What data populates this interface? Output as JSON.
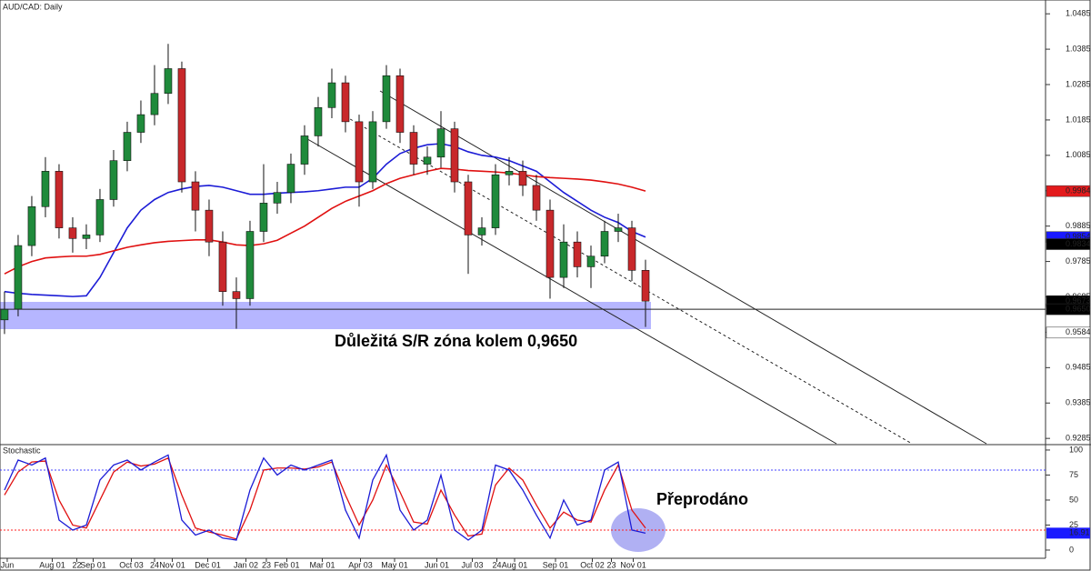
{
  "chart_data": [
    {
      "type": "candlestick",
      "title": "AUD/CAD: Daily",
      "open": [
        0.962,
        0.965,
        0.983,
        0.994,
        1.004,
        0.988,
        0.985,
        0.986,
        0.996,
        1.007,
        1.015,
        1.02,
        1.026,
        1.033,
        1.001,
        0.993,
        0.984,
        0.97,
        0.968,
        0.987,
        0.995,
        0.998,
        1.006,
        1.014,
        1.022,
        1.029,
        1.018,
        1.001,
        1.018,
        1.031,
        1.015,
        1.006,
        1.008,
        1.016,
        1.001,
        0.986,
        0.988,
        1.003,
        1.004,
        1.0,
        0.993,
        0.974,
        0.984,
        0.977,
        0.98,
        0.987,
        0.988,
        0.976
      ],
      "high": [
        0.97,
        0.986,
        0.997,
        1.008,
        1.006,
        0.991,
        0.989,
        0.999,
        1.01,
        1.018,
        1.024,
        1.034,
        1.04,
        1.035,
        1.004,
        0.996,
        0.987,
        0.974,
        0.99,
        1.006,
        1.001,
        1.009,
        1.017,
        1.025,
        1.033,
        1.031,
        1.02,
        1.021,
        1.034,
        1.033,
        1.017,
        1.011,
        1.021,
        1.018,
        1.003,
        0.991,
        1.006,
        1.008,
        1.007,
        1.003,
        0.996,
        0.989,
        0.987,
        0.983,
        0.99,
        0.992,
        0.99,
        0.979
      ],
      "low": [
        0.958,
        0.963,
        0.98,
        0.991,
        0.985,
        0.981,
        0.982,
        0.984,
        0.994,
        1.004,
        1.012,
        1.017,
        1.023,
        0.998,
        0.987,
        0.98,
        0.966,
        0.9595,
        0.966,
        0.984,
        0.992,
        0.995,
        1.003,
        1.011,
        1.019,
        1.015,
        0.994,
        0.999,
        1.016,
        1.012,
        1.003,
        1.003,
        1.005,
        0.998,
        0.975,
        0.983,
        0.986,
        1.0,
        0.997,
        0.99,
        0.968,
        0.971,
        0.974,
        0.971,
        0.978,
        0.984,
        0.973,
        0.96
      ],
      "close": [
        0.965,
        0.983,
        0.994,
        1.004,
        0.988,
        0.985,
        0.986,
        0.996,
        1.007,
        1.015,
        1.02,
        1.026,
        1.033,
        1.001,
        0.993,
        0.984,
        0.97,
        0.968,
        0.987,
        0.995,
        0.998,
        1.006,
        1.014,
        1.022,
        1.029,
        1.018,
        1.001,
        1.018,
        1.031,
        1.015,
        1.006,
        1.008,
        1.016,
        1.001,
        0.986,
        0.988,
        1.003,
        1.004,
        1.0,
        0.993,
        0.974,
        0.984,
        0.977,
        0.98,
        0.987,
        0.988,
        0.976,
        0.9673
      ],
      "up_color": "#1f8a3b",
      "down_color": "#c8282b",
      "moving_averages": [
        {
          "color": "#1c1cd6",
          "values": [
            0.97,
            0.9695,
            0.9692,
            0.969,
            0.9688,
            0.9686,
            0.9688,
            0.974,
            0.981,
            0.988,
            0.993,
            0.996,
            0.998,
            0.999,
            0.9997,
            1.0,
            0.9995,
            0.9985,
            0.9975,
            0.9975,
            0.9978,
            0.998,
            0.9982,
            0.9985,
            0.999,
            0.9995,
            0.9995,
            1.002,
            1.006,
            1.009,
            1.0105,
            1.0115,
            1.0118,
            1.011,
            1.0095,
            1.0085,
            1.008,
            1.007,
            1.0055,
            1.004,
            1.001,
            0.998,
            0.9955,
            0.993,
            0.991,
            0.9895,
            0.987,
            0.9854
          ]
        },
        {
          "color": "#e01010",
          "values": [
            0.975,
            0.977,
            0.9785,
            0.9795,
            0.9798,
            0.98,
            0.98,
            0.9805,
            0.9815,
            0.9825,
            0.9832,
            0.9838,
            0.9842,
            0.9844,
            0.9846,
            0.9846,
            0.984,
            0.9832,
            0.983,
            0.9835,
            0.9845,
            0.9865,
            0.9885,
            0.991,
            0.9935,
            0.9955,
            0.997,
            0.9985,
            1.0005,
            1.002,
            1.003,
            1.004,
            1.0048,
            1.0046,
            1.0042,
            1.004,
            1.0038,
            1.0035,
            1.003,
            1.0025,
            1.0022,
            1.002,
            1.0018,
            1.0015,
            1.001,
            1.0004,
            0.9995,
            0.9984
          ]
        }
      ],
      "xlim": [
        -0.33,
        76.33
      ],
      "ylim": [
        0.927,
        1.0524
      ],
      "yticks": [
        1.0485,
        1.0385,
        1.0285,
        1.0185,
        1.0085,
        0.9985,
        0.9885,
        0.9785,
        0.9685,
        0.9585,
        0.9485,
        0.9385,
        0.9285
      ],
      "xticks": [
        {
          "value": 0.2,
          "label": "Jun"
        },
        {
          "value": 3.5,
          "label": "Aug 01"
        },
        {
          "value": 5.3,
          "label": "22"
        },
        {
          "value": 6.5,
          "label": "Sep 01"
        },
        {
          "value": 9.3,
          "label": "Oct 03"
        },
        {
          "value": 11,
          "label": "24"
        },
        {
          "value": 12.3,
          "label": "Nov 01"
        },
        {
          "value": 14.9,
          "label": "Dec 01"
        },
        {
          "value": 17.7,
          "label": "Jan 02"
        },
        {
          "value": 19.2,
          "label": "23"
        },
        {
          "value": 20.7,
          "label": "Feb 01"
        },
        {
          "value": 23.3,
          "label": "Mar 01"
        },
        {
          "value": 26.1,
          "label": "Apr 03"
        },
        {
          "value": 28.6,
          "label": "May 01"
        },
        {
          "value": 31.7,
          "label": "Jun 01"
        },
        {
          "value": 34.3,
          "label": "Jul 03"
        },
        {
          "value": 36.1,
          "label": "24"
        },
        {
          "value": 37.4,
          "label": "Aug 01"
        },
        {
          "value": 40.4,
          "label": "Sep 01"
        },
        {
          "value": 43.1,
          "label": "Oct 02"
        },
        {
          "value": 44.5,
          "label": "23"
        },
        {
          "value": 46.1,
          "label": "Nov 01"
        }
      ],
      "price_markers": [
        {
          "value": 0.9984,
          "color": "#e31a1c"
        },
        {
          "value": 0.9854,
          "color": "#1a1aff"
        },
        {
          "value": 0.9834,
          "color": "#000000"
        },
        {
          "value": 0.9673,
          "color": "#000000"
        },
        {
          "value": {
            "value": 0.965,
            "label": "0.9650"
          },
          "color": "#000000"
        },
        {
          "value": 0.9584,
          "color": "#ffffff"
        }
      ],
      "annotation": "Důležitá S/R zóna kolem 0,9650"
    },
    {
      "type": "stochastic",
      "title": "Stochastic",
      "k": [
        60,
        90,
        85,
        92,
        30,
        20,
        25,
        70,
        85,
        90,
        80,
        88,
        95,
        30,
        15,
        20,
        12,
        10,
        60,
        92,
        75,
        85,
        80,
        85,
        90,
        40,
        12,
        70,
        95,
        40,
        20,
        30,
        75,
        20,
        10,
        20,
        85,
        80,
        60,
        35,
        12,
        50,
        25,
        30,
        80,
        88,
        20,
        16.91
      ],
      "d": [
        55,
        78,
        88,
        89,
        50,
        25,
        22,
        50,
        78,
        88,
        84,
        86,
        92,
        55,
        22,
        18,
        15,
        11,
        40,
        80,
        82,
        82,
        81,
        83,
        88,
        55,
        25,
        50,
        85,
        58,
        28,
        26,
        60,
        35,
        14,
        16,
        65,
        82,
        70,
        45,
        22,
        38,
        30,
        28,
        60,
        85,
        40,
        22
      ],
      "k_color": "#1c1cd6",
      "d_color": "#e01010",
      "levels": [
        {
          "value": 80,
          "color": "#4040ff"
        },
        {
          "value": 20,
          "color": "#ff2020"
        }
      ],
      "ylim": [
        -8.2,
        104.5
      ],
      "yticks": [
        100,
        75,
        50,
        25,
        0
      ],
      "marker": {
        "value": 16.91,
        "color": "#1a1aff"
      },
      "annotation": "Přeprodáno"
    }
  ]
}
